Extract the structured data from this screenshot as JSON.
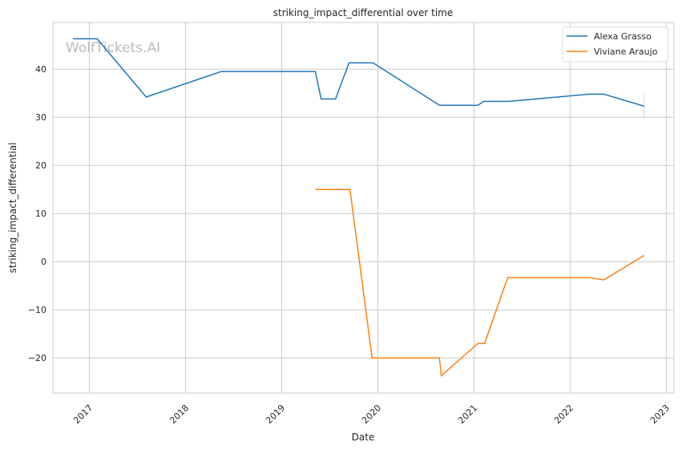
{
  "chart_data": {
    "type": "line",
    "title": "striking_impact_differential over time",
    "xlabel": "Date",
    "ylabel": "striking_impact_differential",
    "watermark": "WolfTickets.AI",
    "xlim": [
      2016.62,
      2023.08
    ],
    "ylim": [
      -27.3,
      49.7
    ],
    "xticks": [
      2017,
      2018,
      2019,
      2020,
      2021,
      2022,
      2023
    ],
    "xtick_labels": [
      "2017",
      "2018",
      "2019",
      "2020",
      "2021",
      "2022",
      "2023"
    ],
    "yticks": [
      -20,
      -10,
      0,
      10,
      20,
      30,
      40
    ],
    "ytick_labels": [
      "−20",
      "−10",
      "0",
      "10",
      "20",
      "30",
      "40"
    ],
    "grid": true,
    "legend_position": "top-right",
    "series": [
      {
        "name": "Alexa Grasso",
        "color": "#1f77b4",
        "x": [
          2016.83,
          2017.08,
          2017.59,
          2018.37,
          2019.35,
          2019.41,
          2019.56,
          2019.7,
          2019.95,
          2020.64,
          2021.04,
          2021.1,
          2021.36,
          2022.2,
          2022.35,
          2022.77
        ],
        "y": [
          46.3,
          46.3,
          34.2,
          39.5,
          39.5,
          33.8,
          33.8,
          41.3,
          41.3,
          32.5,
          32.5,
          33.3,
          33.3,
          34.8,
          34.8,
          32.3
        ],
        "band_last": [
          29.7,
          34.8
        ]
      },
      {
        "name": "Viviane Araujo",
        "color": "#ff7f0e",
        "x": [
          2019.35,
          2019.71,
          2019.94,
          2020.64,
          2020.66,
          2021.04,
          2021.11,
          2021.35,
          2022.2,
          2022.35,
          2022.77
        ],
        "y": [
          15.0,
          15.0,
          -20.0,
          -20.0,
          -23.7,
          -17.0,
          -17.0,
          -3.3,
          -3.3,
          -3.8,
          1.3
        ]
      }
    ]
  }
}
